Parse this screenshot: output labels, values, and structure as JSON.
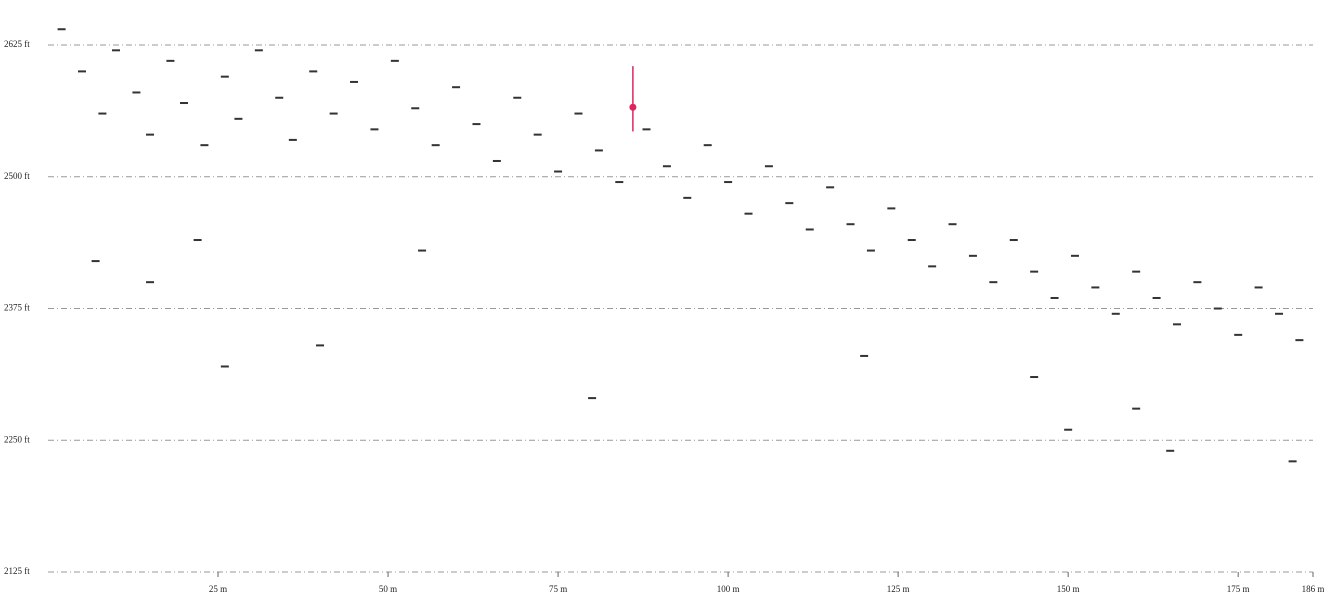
{
  "chart_data": {
    "type": "scatter",
    "x": [
      2,
      5,
      8,
      10,
      13,
      15,
      18,
      20,
      23,
      26,
      28,
      31,
      34,
      36,
      39,
      42,
      45,
      48,
      51,
      54,
      57,
      60,
      63,
      66,
      69,
      72,
      75,
      78,
      81,
      84,
      88,
      91,
      94,
      97,
      100,
      103,
      106,
      109,
      112,
      115,
      118,
      121,
      124,
      127,
      130,
      133,
      136,
      139,
      142,
      145,
      148,
      151,
      154,
      157,
      160,
      163,
      166,
      169,
      172,
      175,
      178,
      181,
      184,
      7,
      15,
      26,
      40,
      22,
      55,
      80,
      120,
      150,
      165,
      183,
      145,
      160
    ],
    "y": [
      2640,
      2600,
      2560,
      2620,
      2580,
      2540,
      2610,
      2570,
      2530,
      2595,
      2555,
      2620,
      2575,
      2535,
      2600,
      2560,
      2590,
      2545,
      2610,
      2565,
      2530,
      2585,
      2550,
      2515,
      2575,
      2540,
      2505,
      2560,
      2525,
      2495,
      2545,
      2510,
      2480,
      2530,
      2495,
      2465,
      2510,
      2475,
      2450,
      2490,
      2455,
      2430,
      2470,
      2440,
      2415,
      2455,
      2425,
      2400,
      2440,
      2410,
      2385,
      2425,
      2395,
      2370,
      2410,
      2385,
      2360,
      2400,
      2375,
      2350,
      2395,
      2370,
      2345,
      2420,
      2400,
      2320,
      2340,
      2440,
      2430,
      2290,
      2330,
      2260,
      2240,
      2230,
      2310,
      2280
    ],
    "color": "#333333",
    "cursor": {
      "x": 86,
      "y": 2566,
      "ymin": 2543,
      "ymax": 2605,
      "color": "#e0245e"
    },
    "xlim": [
      0,
      186
    ],
    "ylim": [
      2125,
      2663
    ],
    "xticks": [
      {
        "value": 25,
        "label": "25 m"
      },
      {
        "value": 50,
        "label": "50 m"
      },
      {
        "value": 75,
        "label": "75 m"
      },
      {
        "value": 100,
        "label": "100 m"
      },
      {
        "value": 125,
        "label": "125 m"
      },
      {
        "value": 150,
        "label": "150 m"
      },
      {
        "value": 175,
        "label": "175 m"
      },
      {
        "value": 186,
        "label": "186 m"
      }
    ],
    "yticks": [
      {
        "value": 2125,
        "label": "2125 ft"
      },
      {
        "value": 2250,
        "label": "2250 ft"
      },
      {
        "value": 2375,
        "label": "2375 ft"
      },
      {
        "value": 2500,
        "label": "2500 ft"
      },
      {
        "value": 2625,
        "label": "2625 ft"
      }
    ],
    "grid": true
  }
}
